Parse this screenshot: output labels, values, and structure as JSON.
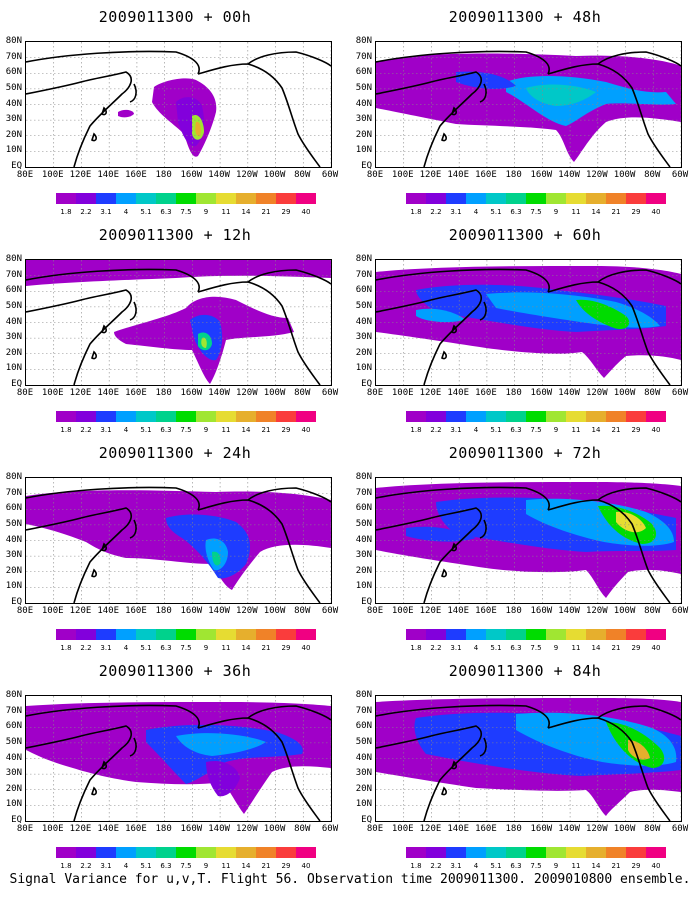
{
  "caption": "Signal Variance for u,v,T. Flight 56. Observation time 2009011300. 2009010800 ensemble.",
  "lat_labels": [
    "80N",
    "70N",
    "60N",
    "50N",
    "40N",
    "30N",
    "20N",
    "10N",
    "EQ"
  ],
  "lon_labels": [
    "80E",
    "100E",
    "120E",
    "140E",
    "160E",
    "180",
    "160W",
    "140W",
    "120W",
    "100W",
    "80W",
    "60W"
  ],
  "colorbar": {
    "levels": [
      "1.8",
      "2.2",
      "3.1",
      "4",
      "5.1",
      "6.3",
      "7.5",
      "9",
      "11",
      "14",
      "21",
      "29",
      "40"
    ],
    "colors": [
      "#a000c8",
      "#8200dc",
      "#1e3cff",
      "#00a0ff",
      "#00c8c8",
      "#00d28c",
      "#00dc00",
      "#a0e632",
      "#e6dc32",
      "#e6af2d",
      "#f08228",
      "#fa3c3c",
      "#f00082"
    ]
  },
  "panels": [
    {
      "title": "2009011300 + 00h"
    },
    {
      "title": "2009011300 + 48h"
    },
    {
      "title": "2009011300 + 12h"
    },
    {
      "title": "2009011300 + 60h"
    },
    {
      "title": "2009011300 + 24h"
    },
    {
      "title": "2009011300 + 72h"
    },
    {
      "title": "2009011300 + 36h"
    },
    {
      "title": "2009011300 + 84h"
    }
  ]
}
